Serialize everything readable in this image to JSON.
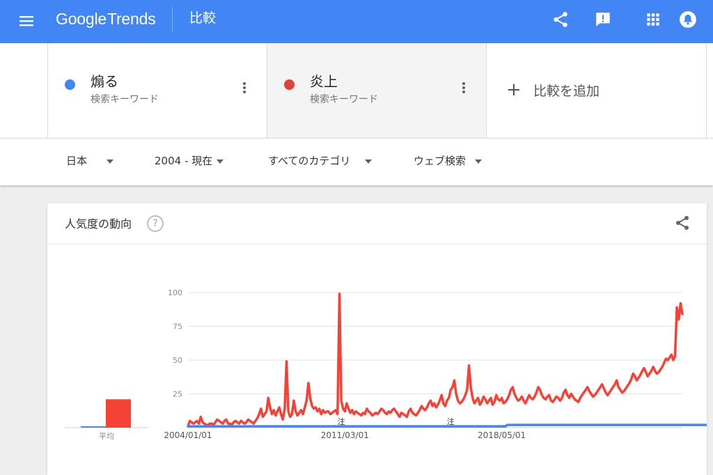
{
  "header": {
    "logo_google": "Google",
    "logo_trends": "Trends",
    "title": "比較",
    "icons": [
      "menu-icon",
      "share-icon",
      "feedback-icon",
      "apps-icon",
      "notifications-icon"
    ]
  },
  "compare": {
    "terms": [
      {
        "label": "煽る",
        "type": "検索キーワード",
        "color": "#4285f4"
      },
      {
        "label": "炎上",
        "type": "検索キーワード",
        "color": "#db4437"
      }
    ],
    "add_label": "比較を追加"
  },
  "filters": {
    "region": "日本",
    "time": "2004 - 現在",
    "category": "すべてのカテゴリ",
    "property": "ウェブ検索"
  },
  "card": {
    "title": "人気度の動向",
    "help_symbol": "?"
  },
  "chart_data": {
    "type": "line",
    "title": "",
    "xlabel": "",
    "ylabel": "",
    "ylim": [
      0,
      100
    ],
    "yticks": [
      "100",
      "75",
      "50",
      "25"
    ],
    "date_labels": [
      "2004/01/01",
      "2011/03/01",
      "2018/05/01"
    ],
    "average_label": "平均",
    "note_label": "注",
    "notes_at": [
      "2011/01",
      "2016/01"
    ],
    "average": [
      {
        "name": "煽る",
        "value": 1,
        "color": "#4285f4"
      },
      {
        "name": "炎上",
        "value": 21,
        "color": "#f44336"
      }
    ],
    "x_start": "2004/01",
    "x_step": "1 month",
    "series": [
      {
        "name": "炎上",
        "color": "#f44336",
        "values": [
          1,
          5,
          4,
          3,
          4,
          5,
          3,
          8,
          4,
          3,
          2,
          2,
          3,
          3,
          2,
          4,
          6,
          5,
          4,
          3,
          5,
          6,
          3,
          3,
          2,
          4,
          5,
          4,
          3,
          5,
          4,
          3,
          4,
          6,
          5,
          4,
          3,
          5,
          7,
          10,
          14,
          8,
          10,
          12,
          22,
          15,
          10,
          13,
          9,
          12,
          15,
          10,
          6,
          14,
          49,
          12,
          8,
          10,
          20,
          12,
          9,
          11,
          13,
          10,
          15,
          20,
          33,
          22,
          16,
          14,
          15,
          12,
          14,
          10,
          13,
          11,
          12,
          12,
          10,
          11,
          12,
          13,
          10,
          99,
          20,
          14,
          12,
          18,
          14,
          11,
          13,
          10,
          12,
          11,
          10,
          9,
          11,
          10,
          14,
          12,
          11,
          9,
          10,
          11,
          10,
          12,
          14,
          13,
          11,
          10,
          12,
          11,
          13,
          14,
          12,
          10,
          8,
          11,
          10,
          9,
          8,
          12,
          14,
          11,
          10,
          9,
          11,
          13,
          16,
          14,
          13,
          15,
          18,
          20,
          16,
          18,
          15,
          17,
          20,
          24,
          18,
          16,
          20,
          22,
          28,
          30,
          35,
          25,
          20,
          18,
          19,
          21,
          24,
          28,
          46,
          30,
          22,
          18,
          20,
          22,
          17,
          19,
          23,
          21,
          18,
          20,
          22,
          17,
          19,
          24,
          21,
          20,
          22,
          18,
          19,
          21,
          24,
          28,
          30,
          25,
          22,
          20,
          21,
          23,
          20,
          18,
          21,
          24,
          22,
          21,
          23,
          26,
          30,
          28,
          24,
          22,
          21,
          23,
          24,
          20,
          19,
          21,
          23,
          22,
          20,
          22,
          26,
          28,
          24,
          22,
          25,
          23,
          21,
          20,
          19,
          22,
          24,
          26,
          28,
          30,
          27,
          25,
          23,
          24,
          26,
          28,
          30,
          32,
          29,
          26,
          24,
          26,
          28,
          30,
          32,
          35,
          30,
          28,
          26,
          27,
          29,
          31,
          33,
          36,
          40,
          38,
          35,
          37,
          39,
          42,
          44,
          41,
          38,
          40,
          42,
          45,
          42,
          40,
          41,
          43,
          45,
          48,
          51,
          50,
          52,
          54,
          50,
          53,
          89,
          80,
          92,
          84
        ]
      },
      {
        "name": "煽る",
        "color": "#4285f4",
        "values": [
          1,
          1,
          1,
          1,
          1,
          1,
          1,
          1,
          1,
          1,
          1,
          1,
          1,
          1,
          1,
          1,
          1,
          1,
          1,
          1,
          1,
          1,
          1,
          1,
          1,
          1,
          1,
          1,
          1,
          1,
          1,
          1,
          1,
          1,
          1,
          1,
          1,
          1,
          1,
          1,
          1,
          1,
          1,
          1,
          1,
          1,
          1,
          1,
          1,
          1,
          1,
          1,
          1,
          1,
          1,
          1,
          1,
          1,
          1,
          1,
          1,
          1,
          1,
          1,
          1,
          1,
          1,
          1,
          1,
          1,
          1,
          1,
          1,
          1,
          1,
          1,
          1,
          1,
          1,
          1,
          1,
          1,
          1,
          1,
          1,
          1,
          1,
          1,
          1,
          1,
          1,
          1,
          1,
          1,
          1,
          1,
          1,
          1,
          1,
          1,
          1,
          1,
          1,
          1,
          1,
          1,
          1,
          1,
          1,
          1,
          1,
          1,
          1,
          1,
          1,
          1,
          1,
          1,
          1,
          1,
          1,
          1,
          1,
          1,
          1,
          1,
          1,
          1,
          1,
          1,
          1,
          1,
          1,
          1,
          1,
          1,
          1,
          1,
          1,
          1,
          1,
          1,
          1,
          1,
          1,
          1,
          1,
          1,
          1,
          1,
          1,
          1,
          1,
          1,
          1,
          1,
          1,
          1,
          1,
          1,
          1,
          1,
          1,
          1,
          1,
          1,
          1,
          1,
          1,
          1,
          1,
          1,
          1,
          1,
          1,
          2,
          2,
          2,
          2,
          2,
          2,
          2,
          2,
          2,
          2,
          2,
          2,
          2,
          2,
          2,
          2,
          2,
          2,
          2,
          2,
          2,
          2,
          2,
          2,
          2,
          2,
          2,
          2,
          2,
          2,
          2,
          2,
          2,
          2,
          2,
          2,
          2,
          2,
          2,
          2,
          2,
          2,
          2,
          2,
          2,
          2,
          2,
          2,
          2,
          2,
          2,
          2,
          2,
          2,
          2,
          2,
          2,
          2,
          2,
          2,
          2,
          2,
          2,
          2,
          2,
          2,
          2,
          2,
          2,
          2,
          2,
          2,
          2,
          2,
          2,
          2,
          2,
          2,
          2,
          2,
          2,
          2,
          2,
          2,
          2,
          2,
          2,
          2,
          2,
          2,
          2,
          2,
          2,
          2,
          2,
          2,
          2,
          2,
          2,
          2,
          2,
          2,
          2,
          2,
          2,
          2,
          2,
          2,
          2,
          2,
          2,
          2,
          2,
          2,
          2,
          2,
          2,
          2
        ]
      }
    ]
  }
}
